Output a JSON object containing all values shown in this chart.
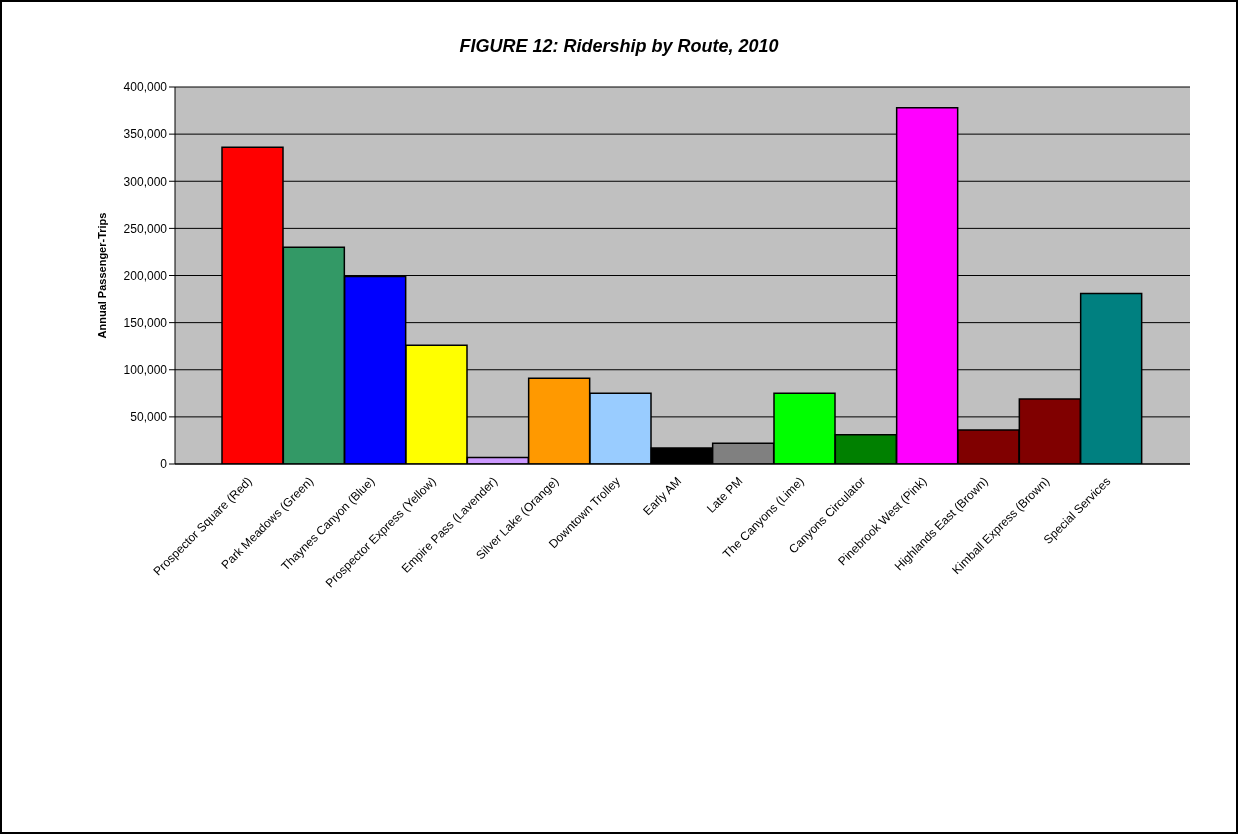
{
  "chart_data": {
    "type": "bar",
    "title": "FIGURE 12: Ridership by Route, 2010",
    "ylabel": "Annual Passenger-Trips",
    "categories": [
      "Prospector Square (Red)",
      "Park Meadows (Green)",
      "Thaynes Canyon (Blue)",
      "Prospector Express (Yellow)",
      "Empire Pass (Lavender)",
      "Silver Lake (Orange)",
      "Downtown Trolley",
      "Early AM",
      "Late PM",
      "The Canyons (Lime)",
      "Canyons Circulator",
      "Pinebrook West  (Pink)",
      "Highlands East (Brown)",
      "Kimball Express (Brown)",
      "Special Services"
    ],
    "values": [
      336000,
      230000,
      199000,
      126000,
      7000,
      91000,
      75000,
      17000,
      22000,
      75000,
      31000,
      378000,
      36000,
      69000,
      181000
    ],
    "colors": [
      "#ff0000",
      "#339966",
      "#0000ff",
      "#ffff00",
      "#cc99ff",
      "#ff9900",
      "#99ccff",
      "#000000",
      "#808080",
      "#00ff00",
      "#008000",
      "#ff00ff",
      "#800000",
      "#800000",
      "#008080"
    ],
    "ylim": [
      0,
      400000
    ],
    "yticks": [
      0,
      {
        "value": 50000,
        "label": "50,000"
      },
      {
        "value": 100000,
        "label": "100,000"
      },
      {
        "value": 150000,
        "label": "150,000"
      },
      {
        "value": 200000,
        "label": "200,000"
      },
      {
        "value": 250000,
        "label": "250,000"
      },
      {
        "value": 300000,
        "label": "300,000"
      },
      {
        "value": 350000,
        "label": "350,000"
      },
      {
        "value": 400000,
        "label": "400,000"
      }
    ],
    "grid": "y"
  }
}
